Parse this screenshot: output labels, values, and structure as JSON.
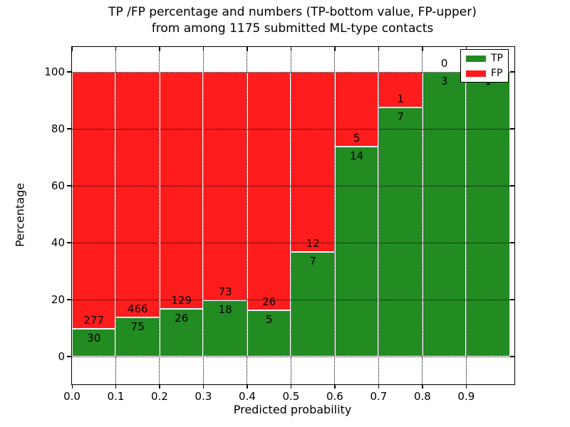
{
  "title": {
    "line1": "TP /FP percentage and numbers (TP-bottom value, FP-upper)",
    "line2": "from among 1175 submitted ML-type contacts"
  },
  "axes": {
    "xlabel": "Predicted probability",
    "ylabel": "Percentage"
  },
  "legend": {
    "items": [
      {
        "label": "TP",
        "color": "#228b22"
      },
      {
        "label": "FP",
        "color": "#ff1c1c"
      }
    ]
  },
  "chart_data": {
    "type": "bar",
    "stacked": true,
    "title": "TP /FP percentage and numbers (TP-bottom value, FP-upper) from among 1175 submitted ML-type contacts",
    "xlabel": "Predicted probability",
    "ylabel": "Percentage",
    "total_contacts": 1175,
    "bin_width": 0.1,
    "bins": [
      {
        "range": [
          0.0,
          0.1
        ],
        "tp": 30,
        "fp": 277,
        "tp_percent": 9.77
      },
      {
        "range": [
          0.1,
          0.2
        ],
        "tp": 75,
        "fp": 466,
        "tp_percent": 13.86
      },
      {
        "range": [
          0.2,
          0.3
        ],
        "tp": 26,
        "fp": 129,
        "tp_percent": 16.77
      },
      {
        "range": [
          0.3,
          0.4
        ],
        "tp": 18,
        "fp": 73,
        "tp_percent": 19.78
      },
      {
        "range": [
          0.4,
          0.5
        ],
        "tp": 5,
        "fp": 26,
        "tp_percent": 16.13
      },
      {
        "range": [
          0.5,
          0.6
        ],
        "tp": 7,
        "fp": 12,
        "tp_percent": 36.84
      },
      {
        "range": [
          0.6,
          0.7
        ],
        "tp": 14,
        "fp": 5,
        "tp_percent": 73.68
      },
      {
        "range": [
          0.7,
          0.8
        ],
        "tp": 7,
        "fp": 1,
        "tp_percent": 87.5
      },
      {
        "range": [
          0.8,
          0.9
        ],
        "tp": 3,
        "fp": 0,
        "tp_percent": 100.0
      },
      {
        "range": [
          0.9,
          1.0
        ],
        "tp": 1,
        "fp": 0,
        "tp_percent": 100.0
      }
    ],
    "series": [
      {
        "name": "TP",
        "color": "#228b22",
        "values": [
          30,
          75,
          26,
          18,
          5,
          7,
          14,
          7,
          3,
          1
        ]
      },
      {
        "name": "FP",
        "color": "#ff1c1c",
        "values": [
          277,
          466,
          129,
          73,
          26,
          12,
          5,
          1,
          0,
          0
        ]
      }
    ],
    "xticks": [
      "0.0",
      "0.1",
      "0.2",
      "0.3",
      "0.4",
      "0.5",
      "0.6",
      "0.7",
      "0.8",
      "0.9"
    ],
    "yticks": [
      0,
      20,
      40,
      60,
      80,
      100
    ],
    "xlim": [
      0.0,
      1.01
    ],
    "ylim": [
      -9.75,
      108.75
    ],
    "grid": true,
    "grid_style": "dotted",
    "bar_edge_color": "#ffffff",
    "legend_position": "upper right"
  }
}
